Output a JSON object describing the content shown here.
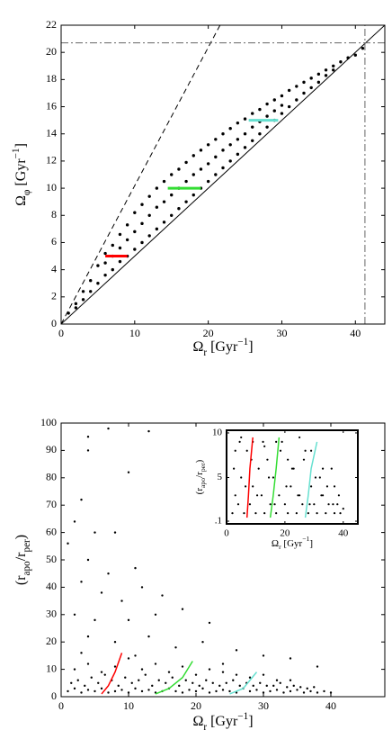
{
  "chart_data": [
    {
      "type": "scatter",
      "xlabel": [
        {
          "t": "Ω"
        },
        {
          "t": "r",
          "pos": "sub"
        },
        {
          "t": " [Gyr"
        },
        {
          "t": "−1",
          "pos": "sup"
        },
        {
          "t": "]"
        }
      ],
      "ylabel": [
        {
          "t": "Ω"
        },
        {
          "t": "φ",
          "pos": "sub"
        },
        {
          "t": " [Gyr"
        },
        {
          "t": "−1",
          "pos": "sup"
        },
        {
          "t": "]"
        }
      ],
      "xlim": [
        0,
        44
      ],
      "xticks": [
        0,
        10,
        20,
        30,
        40
      ],
      "ylim": [
        0,
        22
      ],
      "yticks": [
        0,
        2,
        4,
        6,
        8,
        10,
        12,
        14,
        16,
        18,
        20,
        22
      ],
      "point_color": "#000000",
      "x": [
        1,
        2,
        2,
        3,
        3,
        4,
        4,
        5,
        5,
        6,
        6,
        6,
        7,
        7,
        7,
        8,
        8,
        8,
        9,
        9,
        9,
        10,
        10,
        10,
        11,
        11,
        11,
        12,
        12,
        12,
        13,
        13,
        13,
        14,
        14,
        14,
        15,
        15,
        15,
        16,
        16,
        16,
        17,
        17,
        17,
        18,
        18,
        18,
        19,
        19,
        19,
        20,
        20,
        20,
        21,
        21,
        21,
        22,
        22,
        22,
        23,
        23,
        23,
        24,
        24,
        24,
        25,
        25,
        25,
        26,
        26,
        26,
        27,
        27,
        27,
        28,
        28,
        28,
        29,
        29,
        29,
        30,
        30,
        30,
        31,
        31,
        32,
        32,
        33,
        33,
        34,
        34,
        35,
        35,
        36,
        36,
        37,
        37,
        38,
        39,
        40,
        41
      ],
      "y": [
        0.8,
        1.5,
        1.2,
        2.4,
        1.8,
        3.2,
        2.4,
        4.3,
        3.0,
        5.2,
        3.6,
        4.5,
        5.8,
        4.0,
        5.0,
        6.6,
        4.6,
        5.6,
        7.3,
        5.0,
        6.2,
        8.2,
        5.5,
        6.8,
        8.8,
        6.0,
        7.4,
        9.4,
        6.5,
        8.0,
        10.0,
        7.0,
        8.6,
        10.5,
        7.5,
        9.0,
        11.0,
        8.0,
        9.5,
        11.4,
        8.5,
        10.0,
        11.9,
        9.0,
        10.5,
        12.4,
        9.5,
        11.0,
        12.8,
        10.0,
        11.4,
        13.2,
        10.5,
        11.8,
        13.6,
        11.0,
        12.3,
        14.0,
        11.5,
        12.8,
        14.4,
        12.0,
        13.2,
        14.8,
        12.5,
        13.6,
        15.1,
        13.0,
        14.0,
        15.5,
        13.5,
        14.5,
        15.8,
        14.0,
        14.9,
        16.2,
        14.5,
        15.3,
        16.5,
        15.0,
        15.7,
        16.8,
        15.5,
        16.1,
        17.2,
        16.0,
        17.5,
        16.5,
        17.8,
        17.0,
        18.1,
        17.4,
        18.4,
        17.8,
        18.7,
        18.3,
        19.0,
        18.7,
        19.3,
        19.6,
        19.8,
        20.3
      ],
      "lines": [
        {
          "color": "#000000",
          "dash": "dashed",
          "width": 1,
          "x": [
            0,
            21.6
          ],
          "y": [
            0,
            22
          ]
        },
        {
          "color": "#000000",
          "dash": "solid",
          "width": 1,
          "x": [
            0,
            44
          ],
          "y": [
            0,
            22
          ]
        },
        {
          "color": "#666666",
          "dash": "dashdot",
          "width": 1,
          "x": [
            0,
            44
          ],
          "y": [
            20.7,
            20.7
          ]
        },
        {
          "color": "#666666",
          "dash": "dashdot",
          "width": 1,
          "x": [
            41.3,
            41.3
          ],
          "y": [
            0,
            22
          ]
        },
        {
          "color": "#ff0000",
          "dash": "solid",
          "width": 3,
          "x": [
            6,
            9
          ],
          "y": [
            5,
            5
          ]
        },
        {
          "color": "#33dd33",
          "dash": "solid",
          "width": 3,
          "x": [
            14.5,
            19
          ],
          "y": [
            10,
            10
          ]
        },
        {
          "color": "#66e0d0",
          "dash": "solid",
          "width": 3,
          "x": [
            25.5,
            29.5
          ],
          "y": [
            15,
            15
          ]
        }
      ]
    },
    {
      "type": "scatter",
      "xlabel": [
        {
          "t": "Ω"
        },
        {
          "t": "r",
          "pos": "sub"
        },
        {
          "t": " [Gyr"
        },
        {
          "t": "−1",
          "pos": "sup"
        },
        {
          "t": "]"
        }
      ],
      "ylabel": [
        {
          "t": "(r"
        },
        {
          "t": "apo",
          "pos": "sub"
        },
        {
          "t": "/r"
        },
        {
          "t": "per",
          "pos": "sub"
        },
        {
          "t": ")"
        }
      ],
      "xlim": [
        0,
        48
      ],
      "xticks": [
        0,
        10,
        20,
        30,
        40
      ],
      "ylim": [
        0,
        100
      ],
      "yticks": [
        0,
        10,
        20,
        30,
        40,
        50,
        60,
        70,
        80,
        90,
        100
      ],
      "point_color": "#000000",
      "x": [
        1,
        2,
        3,
        4,
        5,
        6,
        7,
        8,
        9,
        10,
        11,
        12,
        13,
        14,
        15,
        16,
        17,
        18,
        19,
        20,
        21,
        22,
        23,
        24,
        25,
        26,
        27,
        28,
        29,
        30,
        31,
        32,
        33,
        34,
        35,
        36,
        37,
        38,
        39,
        40,
        1.5,
        2.5,
        3.5,
        4.5,
        5.5,
        6.5,
        7.5,
        8.5,
        9.5,
        10.5,
        11.5,
        12.5,
        13.5,
        14.5,
        15.5,
        16.5,
        17.5,
        18.5,
        19.5,
        20.5,
        21.5,
        22.5,
        23.5,
        24.5,
        25.5,
        26.5,
        27.5,
        28.5,
        29.5,
        30.5,
        31.5,
        32.5,
        33.5,
        34.5,
        35.5,
        36.5,
        37.5,
        2,
        4,
        6,
        8,
        10,
        12,
        14,
        16,
        18,
        20,
        22,
        24,
        26,
        28,
        30,
        32,
        34,
        4,
        4,
        7,
        10,
        13,
        3,
        2,
        1,
        5,
        4,
        8,
        11,
        7,
        3,
        6,
        9,
        12,
        15,
        2,
        5,
        10,
        14,
        18,
        22,
        4,
        8,
        13,
        17,
        21,
        26,
        30,
        34,
        3,
        11,
        24,
        38
      ],
      "y": [
        2,
        3,
        1.5,
        2.5,
        2,
        3,
        1.5,
        2,
        2.5,
        1.5,
        3,
        2,
        2.5,
        1.5,
        2,
        3,
        2,
        1.5,
        2.5,
        2,
        3,
        1.5,
        2,
        2.5,
        2,
        1.5,
        3,
        2,
        2.5,
        1.5,
        2,
        2.5,
        1.5,
        2,
        2.5,
        1.5,
        2,
        1.5,
        2,
        1.5,
        5,
        6,
        4,
        7,
        5,
        8,
        6,
        4,
        7,
        5,
        6,
        8,
        4,
        6,
        5,
        7,
        4,
        6,
        5,
        4,
        6,
        5,
        4,
        5,
        6,
        4,
        5,
        4,
        5,
        4,
        4,
        5,
        3.5,
        4,
        3.5,
        3,
        3.5,
        10,
        12,
        9,
        11,
        14,
        10,
        12,
        9,
        11,
        8,
        10,
        9,
        8,
        7,
        8,
        6,
        6,
        95,
        90,
        98,
        82,
        97,
        72,
        64,
        56,
        60,
        50,
        60,
        47,
        45,
        42,
        38,
        35,
        40,
        37,
        30,
        28,
        28,
        30,
        32,
        27,
        22,
        20,
        22,
        18,
        20,
        17,
        15,
        14,
        16,
        15,
        12,
        11
      ],
      "lines": [
        {
          "color": "#ff0000",
          "dash": "solid",
          "width": 1.5,
          "x": [
            6,
            7,
            8,
            9
          ],
          "y": [
            1,
            4,
            9,
            16
          ]
        },
        {
          "color": "#33dd33",
          "dash": "solid",
          "width": 1.5,
          "x": [
            14,
            16,
            18,
            19.5
          ],
          "y": [
            1,
            3,
            7,
            13
          ]
        },
        {
          "color": "#66e0d0",
          "dash": "solid",
          "width": 1.5,
          "x": [
            25,
            27,
            28,
            29
          ],
          "y": [
            1,
            3,
            6,
            9
          ]
        }
      ]
    },
    {
      "type": "scatter",
      "xlabel": [
        {
          "t": "Ω"
        },
        {
          "t": "r",
          "pos": "sub"
        },
        {
          "t": " [Gyr"
        },
        {
          "t": "−1",
          "pos": "sup"
        },
        {
          "t": "]"
        }
      ],
      "ylabel": [
        {
          "t": "(r"
        },
        {
          "t": "apo",
          "pos": "sub"
        },
        {
          "t": "/r"
        },
        {
          "t": "per",
          "pos": "sub"
        },
        {
          "t": ")"
        }
      ],
      "xlim": [
        0,
        45
      ],
      "xticks": [
        0,
        20,
        40
      ],
      "ylim": [
        -0.2,
        10.3
      ],
      "yticks": [
        {
          "value": 0.1,
          "label": ".1"
        },
        5,
        10
      ],
      "point_color": "#000000",
      "x": [
        2,
        3,
        4,
        5,
        6,
        7,
        8,
        9,
        10,
        11,
        12,
        13,
        14,
        15,
        16,
        17,
        18,
        19,
        20,
        21,
        22,
        23,
        24,
        25,
        26,
        27,
        28,
        29,
        30,
        31,
        32,
        33,
        34,
        35,
        36,
        37,
        38,
        39,
        40,
        2.5,
        4.5,
        6.5,
        8.5,
        10.5,
        12.5,
        14.5,
        16.5,
        18.5,
        20.5,
        22.5,
        24.5,
        26.5,
        28.5,
        30.5,
        32.5,
        34.5,
        36.5,
        38.5,
        3,
        5,
        9,
        13,
        17,
        21,
        25,
        29,
        33,
        37
      ],
      "y": [
        1,
        3,
        2,
        5,
        1,
        8,
        2,
        4,
        1,
        6,
        3,
        1,
        7,
        2,
        5,
        1,
        3,
        9,
        2,
        1,
        4,
        6,
        1,
        3,
        2,
        8,
        1,
        4,
        2,
        1,
        5,
        3,
        1,
        2,
        6,
        1,
        2,
        1,
        1.5,
        6,
        9,
        4,
        7,
        3,
        9,
        5,
        2,
        8,
        4,
        6,
        3,
        7,
        2,
        5,
        3,
        4,
        2,
        3,
        8,
        9.5,
        9,
        8.5,
        9,
        7,
        9.5,
        8,
        6,
        4
      ],
      "lines": [
        {
          "color": "#ff0000",
          "dash": "solid",
          "width": 1.5,
          "x": [
            7,
            7.5,
            8,
            9
          ],
          "y": [
            0.5,
            3,
            6,
            9.5
          ]
        },
        {
          "color": "#33dd33",
          "dash": "solid",
          "width": 1.5,
          "x": [
            15,
            16,
            17,
            18
          ],
          "y": [
            0.5,
            3,
            6,
            9.5
          ]
        },
        {
          "color": "#66e0d0",
          "dash": "solid",
          "width": 1.5,
          "x": [
            27,
            28,
            29,
            31
          ],
          "y": [
            0.5,
            3,
            6,
            9
          ]
        }
      ]
    }
  ]
}
